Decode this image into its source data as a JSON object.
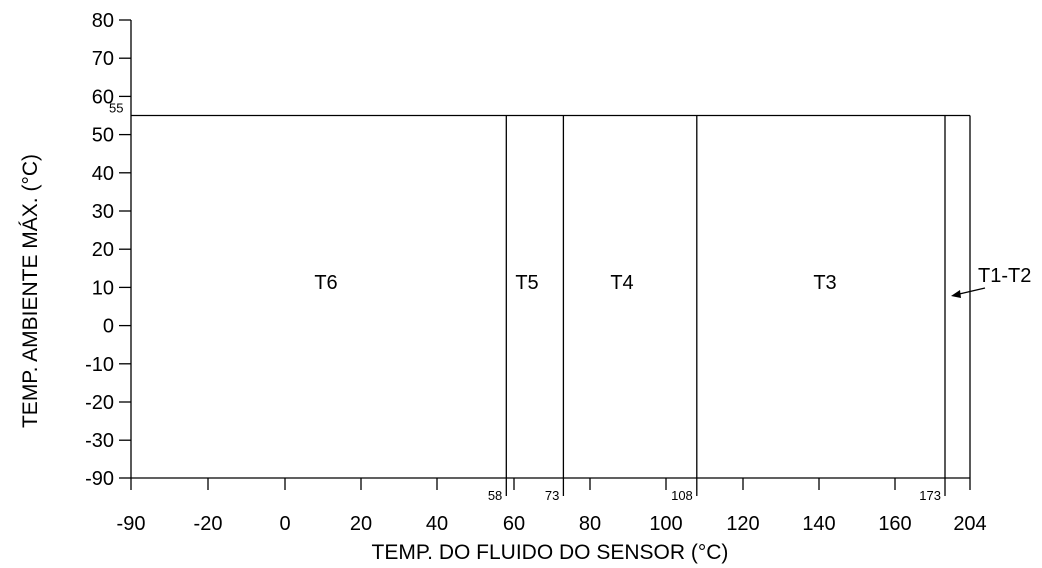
{
  "chart_data": {
    "type": "area",
    "xlabel": "TEMP. DO FLUIDO DO SENSOR (°C)",
    "ylabel": "TEMP. AMBIENTE MÁX. (°C)",
    "x_tick_labels": [
      "-90",
      "-20",
      "0",
      "20",
      "40",
      "60",
      "80",
      "100",
      "120",
      "140",
      "160",
      "204"
    ],
    "y_tick_labels": [
      "80",
      "70",
      "60",
      "50",
      "40",
      "30",
      "20",
      "10",
      "0",
      "-10",
      "-20",
      "-30",
      "-90"
    ],
    "xlim": [
      -90,
      204
    ],
    "ylim": [
      -90,
      80
    ],
    "max_ambient": 55,
    "max_ambient_label": "55",
    "boundaries": [
      {
        "value": 58,
        "label": "58"
      },
      {
        "value": 73,
        "label": "73"
      },
      {
        "value": 108,
        "label": "108"
      },
      {
        "value": 173,
        "label": "173"
      }
    ],
    "zones": [
      {
        "name": "T6",
        "from": -90,
        "to": 58
      },
      {
        "name": "T5",
        "from": 58,
        "to": 73
      },
      {
        "name": "T4",
        "from": 73,
        "to": 108
      },
      {
        "name": "T3",
        "from": 108,
        "to": 173
      },
      {
        "name": "T1-T2",
        "from": 173,
        "to": 204
      }
    ],
    "grid": false
  }
}
